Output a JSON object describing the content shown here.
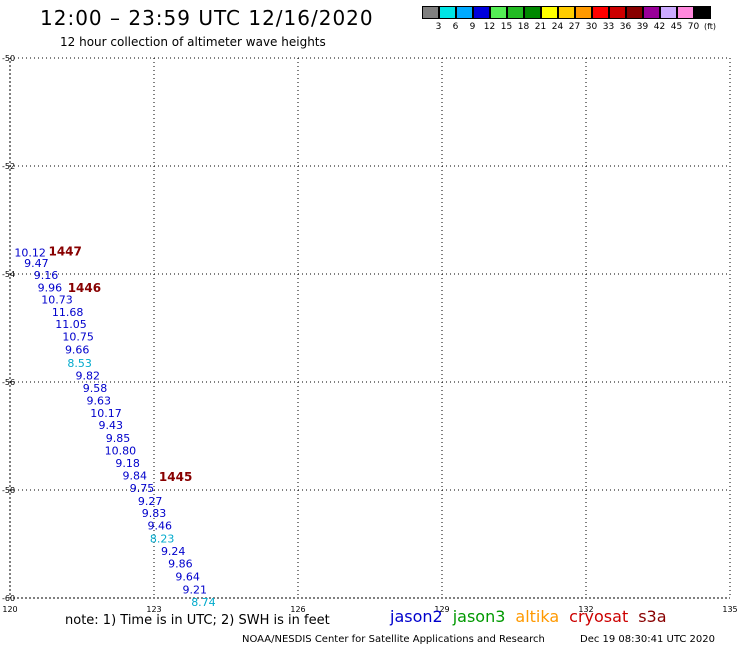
{
  "header": {
    "title": "12:00 – 23:59 UTC 12/16/2020",
    "subtitle": "12 hour collection of altimeter wave heights"
  },
  "colorbar": {
    "colors": [
      "#7f7f7f",
      "#00e5e5",
      "#00aaff",
      "#0000dd",
      "#55ee55",
      "#22bb22",
      "#008800",
      "#ffff00",
      "#ffcc00",
      "#ff9900",
      "#ff0000",
      "#cc0000",
      "#880000",
      "#990099",
      "#ccaaff",
      "#ff88dd",
      "#000000"
    ],
    "labels": [
      "3",
      "6",
      "9",
      "12",
      "15",
      "18",
      "21",
      "24",
      "27",
      "30",
      "33",
      "36",
      "39",
      "42",
      "45",
      "70"
    ],
    "unit": "(ft)"
  },
  "chart_data": {
    "type": "scatter",
    "title": "12:00 – 23:59 UTC 12/16/2020",
    "subtitle": "12 hour collection of altimeter wave heights",
    "xlim": [
      120,
      135
    ],
    "ylim": [
      -60,
      -50
    ],
    "x_ticks": [
      "120",
      "123",
      "126",
      "129",
      "132",
      "135"
    ],
    "y_ticks": [
      "-50",
      "-52",
      "-54",
      "-56",
      "-58",
      "-60"
    ],
    "grid": true,
    "series": [
      {
        "name": "jason2",
        "points": [
          {
            "x": 120.42,
            "y": -53.6,
            "label": "10.12",
            "color": "#0000cc"
          },
          {
            "x": 120.55,
            "y": -53.8,
            "label": "9.47",
            "color": "#0000cc"
          },
          {
            "x": 120.75,
            "y": -54.02,
            "label": "9.16",
            "color": "#0000cc"
          },
          {
            "x": 120.83,
            "y": -54.25,
            "label": "9.96",
            "color": "#0000cc"
          },
          {
            "x": 120.98,
            "y": -54.47,
            "label": "10.73",
            "color": "#0000cc"
          },
          {
            "x": 121.2,
            "y": -54.7,
            "label": "11.68",
            "color": "#0000cc"
          },
          {
            "x": 121.27,
            "y": -54.93,
            "label": "11.05",
            "color": "#0000cc"
          },
          {
            "x": 121.42,
            "y": -55.16,
            "label": "10.75",
            "color": "#0000cc"
          },
          {
            "x": 121.4,
            "y": -55.4,
            "label": "9.66",
            "color": "#0000cc"
          },
          {
            "x": 121.45,
            "y": -55.65,
            "label": "8.53",
            "color": "#00aacc"
          },
          {
            "x": 121.62,
            "y": -55.88,
            "label": "9.82",
            "color": "#0000cc"
          },
          {
            "x": 121.77,
            "y": -56.11,
            "label": "9.58",
            "color": "#0000cc"
          },
          {
            "x": 121.85,
            "y": -56.34,
            "label": "9.63",
            "color": "#0000cc"
          },
          {
            "x": 122.0,
            "y": -56.57,
            "label": "10.17",
            "color": "#0000cc"
          },
          {
            "x": 122.1,
            "y": -56.8,
            "label": "9.43",
            "color": "#0000cc"
          },
          {
            "x": 122.25,
            "y": -57.04,
            "label": "9.85",
            "color": "#0000cc"
          },
          {
            "x": 122.3,
            "y": -57.27,
            "label": "10.80",
            "color": "#0000cc"
          },
          {
            "x": 122.45,
            "y": -57.5,
            "label": "9.18",
            "color": "#0000cc"
          },
          {
            "x": 122.6,
            "y": -57.73,
            "label": "9.84",
            "color": "#0000cc"
          },
          {
            "x": 122.75,
            "y": -57.96,
            "label": "9.75",
            "color": "#0000cc"
          },
          {
            "x": 122.92,
            "y": -58.2,
            "label": "9.27",
            "color": "#0000cc"
          },
          {
            "x": 123.0,
            "y": -58.43,
            "label": "9.83",
            "color": "#0000cc"
          },
          {
            "x": 123.12,
            "y": -58.66,
            "label": "9.46",
            "color": "#0000cc"
          },
          {
            "x": 123.17,
            "y": -58.9,
            "label": "8.23",
            "color": "#00aacc"
          },
          {
            "x": 123.4,
            "y": -59.13,
            "label": "9.24",
            "color": "#0000cc"
          },
          {
            "x": 123.55,
            "y": -59.36,
            "label": "9.86",
            "color": "#0000cc"
          },
          {
            "x": 123.7,
            "y": -59.6,
            "label": "9.64",
            "color": "#0000cc"
          },
          {
            "x": 123.85,
            "y": -59.84,
            "label": "9.21",
            "color": "#0000cc"
          },
          {
            "x": 124.03,
            "y": -60.07,
            "label": "8.74",
            "color": "#00aacc"
          }
        ]
      }
    ],
    "time_labels": [
      {
        "x": 121.15,
        "y": -53.58,
        "label": "1447"
      },
      {
        "x": 121.55,
        "y": -54.26,
        "label": "1446"
      },
      {
        "x": 123.45,
        "y": -57.76,
        "label": "1445"
      }
    ]
  },
  "footer": {
    "note": "note:  1) Time is in UTC;  2) SWH is in feet",
    "satellites": [
      {
        "label": "jason2",
        "color": "#0000cc"
      },
      {
        "label": "jason3",
        "color": "#009900"
      },
      {
        "label": "altika",
        "color": "#ff9900"
      },
      {
        "label": "cryosat",
        "color": "#cc0000"
      },
      {
        "label": "s3a",
        "color": "#880000"
      }
    ],
    "credit": "NOAA/NESDIS Center for Satellite Applications and Research",
    "timestamp": "Dec 19 08:30:41 UTC 2020"
  }
}
